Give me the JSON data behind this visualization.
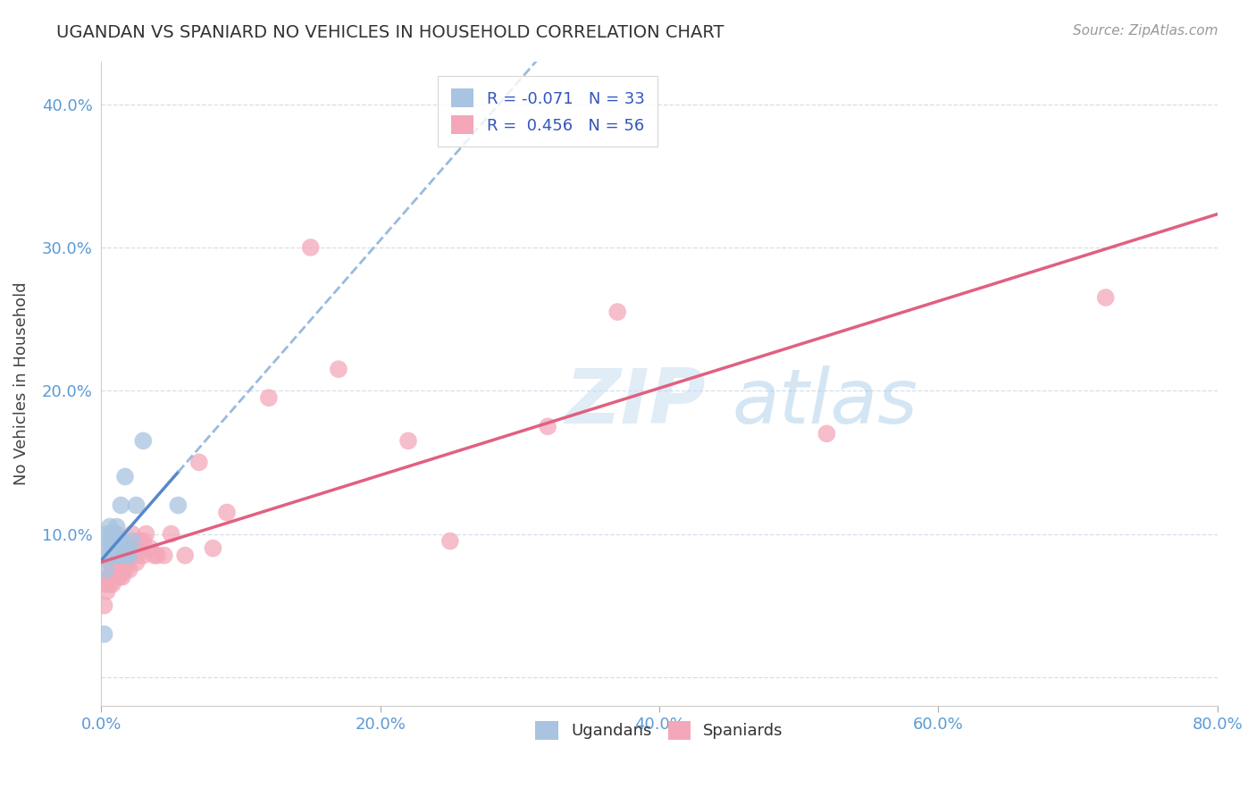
{
  "title": "UGANDAN VS SPANIARD NO VEHICLES IN HOUSEHOLD CORRELATION CHART",
  "source": "Source: ZipAtlas.com",
  "xlabel": "",
  "ylabel": "No Vehicles in Household",
  "watermark_zip": "ZIP",
  "watermark_atlas": "atlas",
  "legend_ugandan": "Ugandans",
  "legend_spaniard": "Spaniards",
  "r_ugandan": -0.071,
  "n_ugandan": 33,
  "r_spaniard": 0.456,
  "n_spaniard": 56,
  "xlim": [
    0.0,
    0.8
  ],
  "ylim": [
    -0.02,
    0.43
  ],
  "xticks": [
    0.0,
    0.2,
    0.4,
    0.6,
    0.8
  ],
  "xtick_labels": [
    "0.0%",
    "20.0%",
    "40.0%",
    "60.0%",
    "80.0%"
  ],
  "yticks": [
    0.0,
    0.1,
    0.2,
    0.3,
    0.4
  ],
  "ytick_labels": [
    "",
    "10.0%",
    "20.0%",
    "30.0%",
    "40.0%"
  ],
  "color_ugandan": "#a8c4e0",
  "color_spaniard": "#f4a7b9",
  "line_color_ugandan_solid": "#5588cc",
  "line_color_ugandan_dashed": "#99bbdd",
  "line_color_spaniard": "#e06080",
  "ugandan_x": [
    0.002,
    0.003,
    0.004,
    0.004,
    0.005,
    0.006,
    0.006,
    0.007,
    0.007,
    0.008,
    0.008,
    0.009,
    0.009,
    0.009,
    0.01,
    0.01,
    0.011,
    0.011,
    0.012,
    0.013,
    0.013,
    0.014,
    0.015,
    0.015,
    0.016,
    0.017,
    0.018,
    0.019,
    0.02,
    0.022,
    0.025,
    0.03,
    0.055
  ],
  "ugandan_y": [
    0.03,
    0.075,
    0.09,
    0.1,
    0.085,
    0.095,
    0.105,
    0.09,
    0.1,
    0.085,
    0.095,
    0.09,
    0.095,
    0.1,
    0.085,
    0.095,
    0.1,
    0.105,
    0.085,
    0.09,
    0.095,
    0.12,
    0.09,
    0.095,
    0.085,
    0.14,
    0.085,
    0.09,
    0.085,
    0.095,
    0.12,
    0.165,
    0.12
  ],
  "spaniard_x": [
    0.002,
    0.003,
    0.004,
    0.005,
    0.006,
    0.006,
    0.007,
    0.007,
    0.008,
    0.008,
    0.009,
    0.009,
    0.01,
    0.01,
    0.011,
    0.011,
    0.012,
    0.013,
    0.013,
    0.014,
    0.015,
    0.015,
    0.016,
    0.016,
    0.017,
    0.018,
    0.019,
    0.02,
    0.021,
    0.022,
    0.023,
    0.025,
    0.026,
    0.027,
    0.028,
    0.03,
    0.03,
    0.032,
    0.035,
    0.038,
    0.04,
    0.045,
    0.05,
    0.06,
    0.07,
    0.08,
    0.09,
    0.12,
    0.15,
    0.17,
    0.22,
    0.25,
    0.32,
    0.37,
    0.52,
    0.72
  ],
  "spaniard_y": [
    0.05,
    0.065,
    0.06,
    0.07,
    0.065,
    0.08,
    0.07,
    0.08,
    0.065,
    0.08,
    0.07,
    0.075,
    0.08,
    0.075,
    0.07,
    0.08,
    0.075,
    0.07,
    0.075,
    0.075,
    0.07,
    0.08,
    0.08,
    0.085,
    0.075,
    0.08,
    0.085,
    0.075,
    0.09,
    0.1,
    0.085,
    0.08,
    0.085,
    0.095,
    0.09,
    0.095,
    0.085,
    0.1,
    0.09,
    0.085,
    0.085,
    0.085,
    0.1,
    0.085,
    0.15,
    0.09,
    0.115,
    0.195,
    0.3,
    0.215,
    0.165,
    0.095,
    0.175,
    0.255,
    0.17,
    0.265
  ]
}
